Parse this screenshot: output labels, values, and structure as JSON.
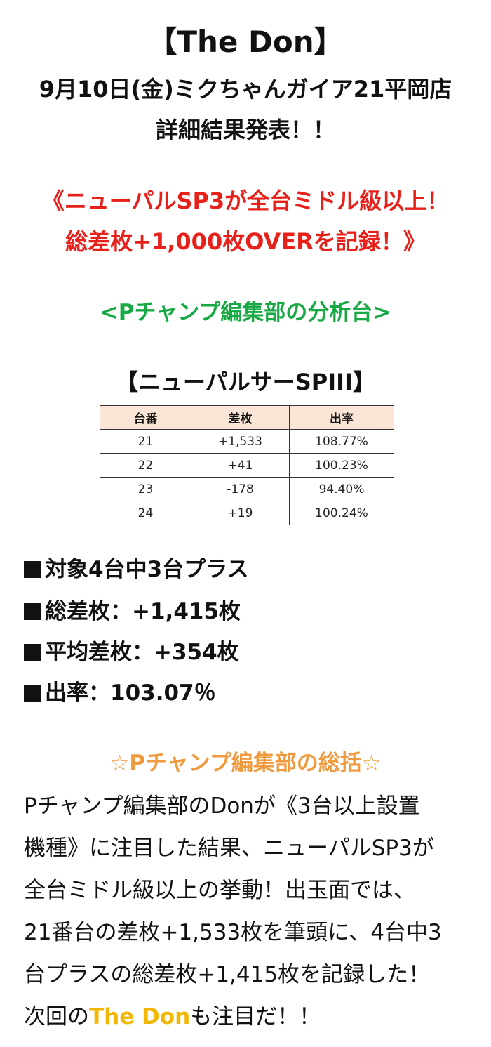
{
  "header": {
    "title": "【The Don】",
    "subtitle": "9月10日(金)ミクちゃんガイア21平岡店",
    "announce": "詳細結果発表！！"
  },
  "headline": {
    "line1": "《ニューパルSP3が全台ミドル級以上！",
    "line2": "総差枚+1,000枚OVERを記録！》"
  },
  "section_label": "<Pチャンプ編集部の分析台>",
  "machine": {
    "name": "【ニューパルサーSPIII】",
    "columns": [
      "台番",
      "差枚",
      "出率"
    ],
    "rows": [
      [
        "21",
        "+1,533",
        "108.77%"
      ],
      [
        "22",
        "+41",
        "100.23%"
      ],
      [
        "23",
        "-178",
        "94.40%"
      ],
      [
        "24",
        "+19",
        "100.24%"
      ]
    ]
  },
  "stats": [
    "対象4台中3台プラス",
    "総差枚：+1,415枚",
    "平均差枚：+354枚",
    "出率：103.07％"
  ],
  "summary": {
    "heading": "☆Pチャンプ編集部の総括☆",
    "lines": [
      "Pチャンプ編集部のDonが《3台以上設置",
      "機種》に注目した結果、ニューパルSP3が",
      "全台ミドル級以上の挙動！出玉面では、",
      "21番台の差枚+1,533枚を筆頭に、4台中3",
      "台プラスの総差枚+1,415枚を記録した！"
    ],
    "last_prefix": "次回の",
    "brand": "The Don",
    "last_suffix": "も注目だ！！"
  },
  "colors": {
    "headline": "#e8201a",
    "section_label": "#17a943",
    "summary_heading": "#f09a3e",
    "brand": "#f2b705",
    "table_header_bg": "#fbe5d6"
  }
}
